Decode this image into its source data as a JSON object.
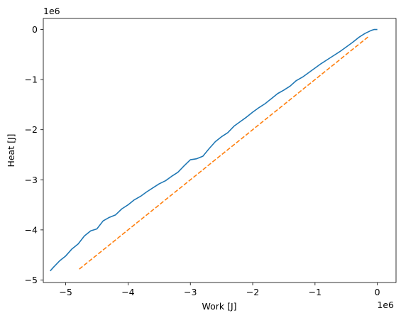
{
  "chart_data": {
    "type": "line",
    "xlabel": "Work [J]",
    "ylabel": "Heat [J]",
    "x_offset_label": "1e6",
    "y_offset_label": "1e6",
    "xlim": [
      -5.36,
      0.3
    ],
    "ylim": [
      -5.05,
      0.22
    ],
    "x_ticks": [
      -5,
      -4,
      -3,
      -2,
      -1,
      0
    ],
    "x_tick_labels": [
      "−5",
      "−4",
      "−3",
      "−2",
      "−1",
      "0"
    ],
    "y_ticks": [
      -5,
      -4,
      -3,
      -2,
      -1,
      0
    ],
    "y_tick_labels": [
      "−5",
      "−4",
      "−3",
      "−2",
      "−1",
      "0"
    ],
    "grid": false,
    "series": [
      {
        "color": "#1f77b4",
        "style": "solid",
        "x": [
          0.0,
          -0.05,
          -0.1,
          -0.2,
          -0.3,
          -0.4,
          -0.5,
          -0.6,
          -0.7,
          -0.8,
          -0.9,
          -1.0,
          -1.1,
          -1.2,
          -1.3,
          -1.4,
          -1.5,
          -1.6,
          -1.7,
          -1.8,
          -1.9,
          -2.0,
          -2.1,
          -2.2,
          -2.3,
          -2.4,
          -2.5,
          -2.6,
          -2.7,
          -2.8,
          -2.9,
          -3.0,
          -3.1,
          -3.2,
          -3.3,
          -3.4,
          -3.5,
          -3.6,
          -3.7,
          -3.8,
          -3.9,
          -4.0,
          -4.1,
          -4.2,
          -4.3,
          -4.4,
          -4.5,
          -4.6,
          -4.7,
          -4.8,
          -4.9,
          -5.0,
          -5.1,
          -5.2,
          -5.25
        ],
        "y": [
          0.0,
          0.0,
          -0.02,
          -0.08,
          -0.16,
          -0.26,
          -0.35,
          -0.44,
          -0.52,
          -0.6,
          -0.68,
          -0.77,
          -0.86,
          -0.95,
          -1.02,
          -1.13,
          -1.21,
          -1.28,
          -1.38,
          -1.48,
          -1.56,
          -1.65,
          -1.75,
          -1.84,
          -1.93,
          -2.06,
          -2.14,
          -2.24,
          -2.38,
          -2.53,
          -2.58,
          -2.6,
          -2.72,
          -2.85,
          -2.93,
          -3.02,
          -3.08,
          -3.16,
          -3.24,
          -3.33,
          -3.4,
          -3.5,
          -3.58,
          -3.7,
          -3.75,
          -3.82,
          -3.98,
          -4.02,
          -4.12,
          -4.28,
          -4.38,
          -4.52,
          -4.62,
          -4.75,
          -4.82
        ]
      },
      {
        "color": "#ff7f0e",
        "style": "dashed",
        "x": [
          -0.15,
          -4.8
        ],
        "y": [
          -0.15,
          -4.8
        ]
      }
    ]
  }
}
